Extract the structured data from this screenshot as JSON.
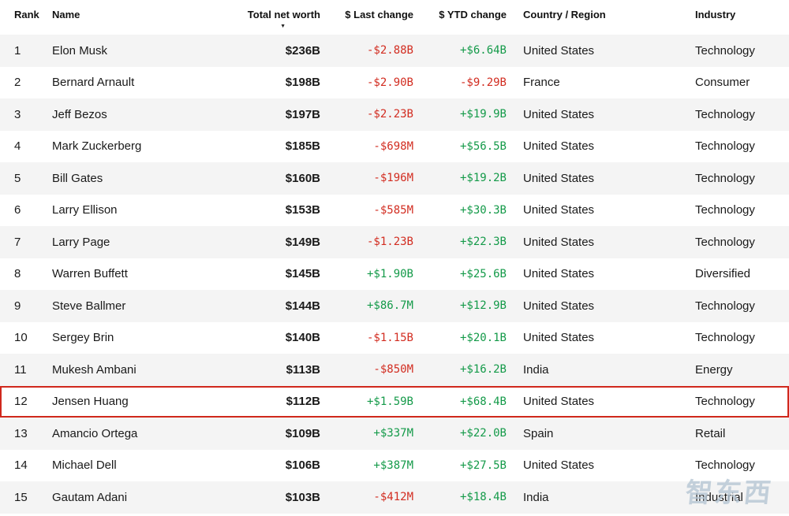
{
  "table": {
    "columns": [
      {
        "key": "rank",
        "label": "Rank"
      },
      {
        "key": "name",
        "label": "Name"
      },
      {
        "key": "net_worth",
        "label": "Total net worth"
      },
      {
        "key": "last_change",
        "label": "$ Last change"
      },
      {
        "key": "ytd_change",
        "label": "$ YTD change"
      },
      {
        "key": "country",
        "label": "Country / Region"
      },
      {
        "key": "industry",
        "label": "Industry"
      }
    ],
    "sort": {
      "column": "Total net worth",
      "direction": "desc",
      "glyph": "▼"
    },
    "highlighted_rank": "12",
    "rows": [
      {
        "rank": "1",
        "name": "Elon Musk",
        "net_worth": "$236B",
        "last_change": "-$2.88B",
        "ytd_change": "+$6.64B",
        "country": "United States",
        "industry": "Technology"
      },
      {
        "rank": "2",
        "name": "Bernard Arnault",
        "net_worth": "$198B",
        "last_change": "-$2.90B",
        "ytd_change": "-$9.29B",
        "country": "France",
        "industry": "Consumer"
      },
      {
        "rank": "3",
        "name": "Jeff Bezos",
        "net_worth": "$197B",
        "last_change": "-$2.23B",
        "ytd_change": "+$19.9B",
        "country": "United States",
        "industry": "Technology"
      },
      {
        "rank": "4",
        "name": "Mark Zuckerberg",
        "net_worth": "$185B",
        "last_change": "-$698M",
        "ytd_change": "+$56.5B",
        "country": "United States",
        "industry": "Technology"
      },
      {
        "rank": "5",
        "name": "Bill Gates",
        "net_worth": "$160B",
        "last_change": "-$196M",
        "ytd_change": "+$19.2B",
        "country": "United States",
        "industry": "Technology"
      },
      {
        "rank": "6",
        "name": "Larry Ellison",
        "net_worth": "$153B",
        "last_change": "-$585M",
        "ytd_change": "+$30.3B",
        "country": "United States",
        "industry": "Technology"
      },
      {
        "rank": "7",
        "name": "Larry Page",
        "net_worth": "$149B",
        "last_change": "-$1.23B",
        "ytd_change": "+$22.3B",
        "country": "United States",
        "industry": "Technology"
      },
      {
        "rank": "8",
        "name": "Warren Buffett",
        "net_worth": "$145B",
        "last_change": "+$1.90B",
        "ytd_change": "+$25.6B",
        "country": "United States",
        "industry": "Diversified"
      },
      {
        "rank": "9",
        "name": "Steve Ballmer",
        "net_worth": "$144B",
        "last_change": "+$86.7M",
        "ytd_change": "+$12.9B",
        "country": "United States",
        "industry": "Technology"
      },
      {
        "rank": "10",
        "name": "Sergey Brin",
        "net_worth": "$140B",
        "last_change": "-$1.15B",
        "ytd_change": "+$20.1B",
        "country": "United States",
        "industry": "Technology"
      },
      {
        "rank": "11",
        "name": "Mukesh Ambani",
        "net_worth": "$113B",
        "last_change": "-$850M",
        "ytd_change": "+$16.2B",
        "country": "India",
        "industry": "Energy"
      },
      {
        "rank": "12",
        "name": "Jensen Huang",
        "net_worth": "$112B",
        "last_change": "+$1.59B",
        "ytd_change": "+$68.4B",
        "country": "United States",
        "industry": "Technology"
      },
      {
        "rank": "13",
        "name": "Amancio Ortega",
        "net_worth": "$109B",
        "last_change": "+$337M",
        "ytd_change": "+$22.0B",
        "country": "Spain",
        "industry": "Retail"
      },
      {
        "rank": "14",
        "name": "Michael Dell",
        "net_worth": "$106B",
        "last_change": "+$387M",
        "ytd_change": "+$27.5B",
        "country": "United States",
        "industry": "Technology"
      },
      {
        "rank": "15",
        "name": "Gautam Adani",
        "net_worth": "$103B",
        "last_change": "-$412M",
        "ytd_change": "+$18.4B",
        "country": "India",
        "industry": "Industrial"
      }
    ]
  },
  "colors": {
    "positive": "#149a49",
    "negative": "#d22d21",
    "highlight_border": "#d0281c",
    "row_stripe": "#f4f4f4",
    "watermark": "#b6c6d4"
  },
  "watermark": {
    "text": "智东西"
  }
}
